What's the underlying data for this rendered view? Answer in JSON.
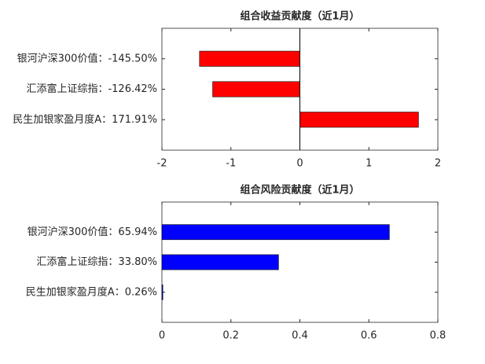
{
  "chart_data": [
    {
      "type": "barh",
      "title": "组合收益贡献度（近1月）",
      "categories": [
        "银河沪深300价值：-145.50%",
        "汇添富上证综指：-126.42%",
        "民生加银家盈月度A：171.91%"
      ],
      "values": [
        -1.455,
        -1.2642,
        1.7191
      ],
      "color": "#ff0000",
      "xlim": [
        -2,
        2
      ],
      "xticks": [
        -2,
        -1,
        0,
        1,
        2
      ]
    },
    {
      "type": "barh",
      "title": "组合风险贡献度（近1月）",
      "categories": [
        "银河沪深300价值：65.94%",
        "汇添富上证综指：33.80%",
        "民生加银家盈月度A：0.26%"
      ],
      "values": [
        0.6594,
        0.338,
        0.0026
      ],
      "color": "#0000ff",
      "xlim": [
        0,
        0.8
      ],
      "xticks": [
        0,
        0.2,
        0.4,
        0.6,
        0.8
      ]
    }
  ]
}
